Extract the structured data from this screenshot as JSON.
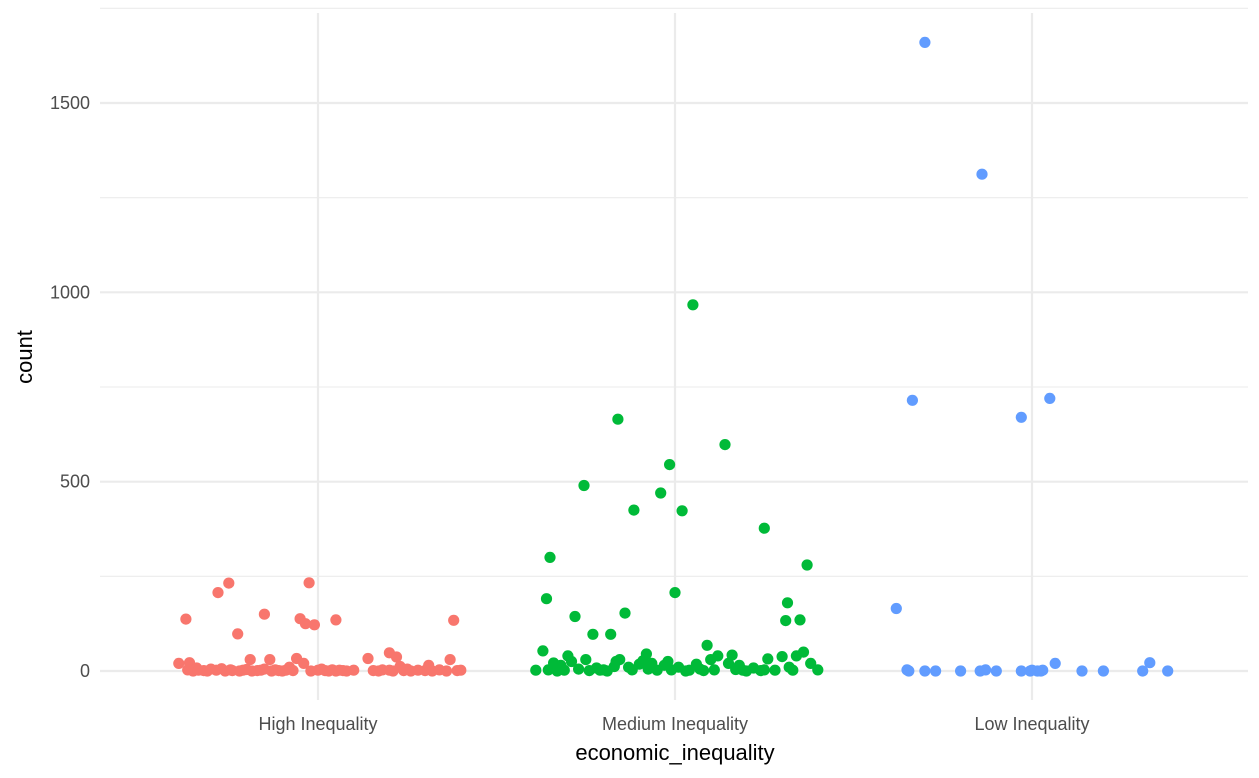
{
  "chart_data": {
    "type": "scatter",
    "title": "",
    "xlabel": "economic_inequality",
    "ylabel": "count",
    "ylim": [
      -70,
      1730
    ],
    "yticks": [
      0,
      500,
      1000,
      1500
    ],
    "grid": true,
    "legend": "none",
    "categories": [
      "High Inequality",
      "Medium Inequality",
      "Low Inequality"
    ],
    "series": [
      {
        "category": "High Inequality",
        "color": "#F8766D",
        "points": [
          {
            "x": -0.39,
            "y": 20
          },
          {
            "x": -0.37,
            "y": 137
          },
          {
            "x": -0.36,
            "y": 22
          },
          {
            "x": -0.365,
            "y": 3
          },
          {
            "x": -0.35,
            "y": 0
          },
          {
            "x": -0.34,
            "y": 8
          },
          {
            "x": -0.335,
            "y": 2
          },
          {
            "x": -0.32,
            "y": 1
          },
          {
            "x": -0.31,
            "y": 0
          },
          {
            "x": -0.3,
            "y": 5
          },
          {
            "x": -0.285,
            "y": 2
          },
          {
            "x": -0.28,
            "y": 207
          },
          {
            "x": -0.27,
            "y": 6
          },
          {
            "x": -0.26,
            "y": 0
          },
          {
            "x": -0.25,
            "y": 232
          },
          {
            "x": -0.245,
            "y": 3
          },
          {
            "x": -0.24,
            "y": 1
          },
          {
            "x": -0.225,
            "y": 98
          },
          {
            "x": -0.22,
            "y": 0
          },
          {
            "x": -0.21,
            "y": 2
          },
          {
            "x": -0.2,
            "y": 4
          },
          {
            "x": -0.19,
            "y": 30
          },
          {
            "x": -0.185,
            "y": 0
          },
          {
            "x": -0.17,
            "y": 1
          },
          {
            "x": -0.16,
            "y": 2
          },
          {
            "x": -0.15,
            "y": 5
          },
          {
            "x": -0.15,
            "y": 150
          },
          {
            "x": -0.135,
            "y": 30
          },
          {
            "x": -0.13,
            "y": 0
          },
          {
            "x": -0.12,
            "y": 3
          },
          {
            "x": -0.11,
            "y": 1
          },
          {
            "x": -0.1,
            "y": 0
          },
          {
            "x": -0.09,
            "y": 2
          },
          {
            "x": -0.08,
            "y": 10
          },
          {
            "x": -0.07,
            "y": 1
          },
          {
            "x": -0.06,
            "y": 33
          },
          {
            "x": -0.05,
            "y": 138
          },
          {
            "x": -0.04,
            "y": 20
          },
          {
            "x": -0.035,
            "y": 125
          },
          {
            "x": -0.025,
            "y": 233
          },
          {
            "x": -0.02,
            "y": 0
          },
          {
            "x": -0.01,
            "y": 122
          },
          {
            "x": 0.0,
            "y": 2
          },
          {
            "x": 0.01,
            "y": 5
          },
          {
            "x": 0.02,
            "y": 1
          },
          {
            "x": 0.03,
            "y": 0
          },
          {
            "x": 0.04,
            "y": 3
          },
          {
            "x": 0.05,
            "y": 0
          },
          {
            "x": 0.05,
            "y": 135
          },
          {
            "x": 0.06,
            "y": 2
          },
          {
            "x": 0.07,
            "y": 1
          },
          {
            "x": 0.08,
            "y": 0
          },
          {
            "x": 0.1,
            "y": 2
          },
          {
            "x": 0.14,
            "y": 33
          },
          {
            "x": 0.155,
            "y": 1
          },
          {
            "x": 0.17,
            "y": 0
          },
          {
            "x": 0.18,
            "y": 3
          },
          {
            "x": 0.2,
            "y": 2
          },
          {
            "x": 0.2,
            "y": 48
          },
          {
            "x": 0.21,
            "y": 0
          },
          {
            "x": 0.22,
            "y": 37
          },
          {
            "x": 0.23,
            "y": 12
          },
          {
            "x": 0.24,
            "y": 1
          },
          {
            "x": 0.25,
            "y": 5
          },
          {
            "x": 0.26,
            "y": 0
          },
          {
            "x": 0.28,
            "y": 2
          },
          {
            "x": 0.3,
            "y": 1
          },
          {
            "x": 0.31,
            "y": 15
          },
          {
            "x": 0.32,
            "y": 0
          },
          {
            "x": 0.34,
            "y": 3
          },
          {
            "x": 0.36,
            "y": 0
          },
          {
            "x": 0.37,
            "y": 30
          },
          {
            "x": 0.38,
            "y": 134
          },
          {
            "x": 0.39,
            "y": 1
          },
          {
            "x": 0.4,
            "y": 2
          }
        ]
      },
      {
        "category": "Medium Inequality",
        "color": "#00BA38",
        "points": [
          {
            "x": -0.39,
            "y": 2
          },
          {
            "x": -0.37,
            "y": 53
          },
          {
            "x": -0.36,
            "y": 191
          },
          {
            "x": -0.355,
            "y": 3
          },
          {
            "x": -0.35,
            "y": 300
          },
          {
            "x": -0.34,
            "y": 21
          },
          {
            "x": -0.33,
            "y": 0
          },
          {
            "x": -0.32,
            "y": 15
          },
          {
            "x": -0.31,
            "y": 2
          },
          {
            "x": -0.3,
            "y": 40
          },
          {
            "x": -0.29,
            "y": 25
          },
          {
            "x": -0.28,
            "y": 144
          },
          {
            "x": -0.27,
            "y": 5
          },
          {
            "x": -0.255,
            "y": 490
          },
          {
            "x": -0.25,
            "y": 30
          },
          {
            "x": -0.24,
            "y": 1
          },
          {
            "x": -0.23,
            "y": 97
          },
          {
            "x": -0.22,
            "y": 8
          },
          {
            "x": -0.21,
            "y": 2
          },
          {
            "x": -0.2,
            "y": 3
          },
          {
            "x": -0.19,
            "y": 0
          },
          {
            "x": -0.18,
            "y": 97
          },
          {
            "x": -0.17,
            "y": 12
          },
          {
            "x": -0.165,
            "y": 25
          },
          {
            "x": -0.16,
            "y": 665
          },
          {
            "x": -0.155,
            "y": 30
          },
          {
            "x": -0.14,
            "y": 153
          },
          {
            "x": -0.13,
            "y": 10
          },
          {
            "x": -0.12,
            "y": 3
          },
          {
            "x": -0.115,
            "y": 425
          },
          {
            "x": -0.1,
            "y": 18
          },
          {
            "x": -0.09,
            "y": 27
          },
          {
            "x": -0.08,
            "y": 45
          },
          {
            "x": -0.075,
            "y": 5
          },
          {
            "x": -0.065,
            "y": 20
          },
          {
            "x": -0.05,
            "y": 2
          },
          {
            "x": -0.04,
            "y": 470
          },
          {
            "x": -0.03,
            "y": 15
          },
          {
            "x": -0.02,
            "y": 25
          },
          {
            "x": -0.015,
            "y": 545
          },
          {
            "x": -0.01,
            "y": 3
          },
          {
            "x": 0.0,
            "y": 207
          },
          {
            "x": 0.01,
            "y": 10
          },
          {
            "x": 0.02,
            "y": 423
          },
          {
            "x": 0.03,
            "y": 0
          },
          {
            "x": 0.04,
            "y": 2
          },
          {
            "x": 0.05,
            "y": 967
          },
          {
            "x": 0.06,
            "y": 18
          },
          {
            "x": 0.07,
            "y": 5
          },
          {
            "x": 0.08,
            "y": 1
          },
          {
            "x": 0.09,
            "y": 68
          },
          {
            "x": 0.1,
            "y": 30
          },
          {
            "x": 0.11,
            "y": 3
          },
          {
            "x": 0.12,
            "y": 40
          },
          {
            "x": 0.14,
            "y": 598
          },
          {
            "x": 0.15,
            "y": 20
          },
          {
            "x": 0.16,
            "y": 42
          },
          {
            "x": 0.17,
            "y": 4
          },
          {
            "x": 0.18,
            "y": 15
          },
          {
            "x": 0.19,
            "y": 2
          },
          {
            "x": 0.2,
            "y": 0
          },
          {
            "x": 0.22,
            "y": 8
          },
          {
            "x": 0.24,
            "y": 1
          },
          {
            "x": 0.25,
            "y": 3
          },
          {
            "x": 0.25,
            "y": 377
          },
          {
            "x": 0.26,
            "y": 32
          },
          {
            "x": 0.28,
            "y": 2
          },
          {
            "x": 0.3,
            "y": 38
          },
          {
            "x": 0.31,
            "y": 133
          },
          {
            "x": 0.315,
            "y": 180
          },
          {
            "x": 0.32,
            "y": 10
          },
          {
            "x": 0.33,
            "y": 2
          },
          {
            "x": 0.34,
            "y": 40
          },
          {
            "x": 0.35,
            "y": 135
          },
          {
            "x": 0.36,
            "y": 50
          },
          {
            "x": 0.37,
            "y": 280
          },
          {
            "x": 0.38,
            "y": 20
          },
          {
            "x": 0.4,
            "y": 3
          }
        ]
      },
      {
        "category": "Low Inequality",
        "color": "#619CFF",
        "points": [
          {
            "x": -0.38,
            "y": 165
          },
          {
            "x": -0.35,
            "y": 3
          },
          {
            "x": -0.345,
            "y": 0
          },
          {
            "x": -0.335,
            "y": 715
          },
          {
            "x": -0.3,
            "y": 0
          },
          {
            "x": -0.3,
            "y": 1660
          },
          {
            "x": -0.27,
            "y": 0
          },
          {
            "x": -0.2,
            "y": 0
          },
          {
            "x": -0.145,
            "y": 0
          },
          {
            "x": -0.14,
            "y": 1312
          },
          {
            "x": -0.13,
            "y": 3
          },
          {
            "x": -0.1,
            "y": 0
          },
          {
            "x": -0.03,
            "y": 670
          },
          {
            "x": -0.03,
            "y": 0
          },
          {
            "x": -0.005,
            "y": 0
          },
          {
            "x": 0.0,
            "y": 2
          },
          {
            "x": 0.015,
            "y": 0
          },
          {
            "x": 0.025,
            "y": 0
          },
          {
            "x": 0.03,
            "y": 2
          },
          {
            "x": 0.05,
            "y": 720
          },
          {
            "x": 0.065,
            "y": 20
          },
          {
            "x": 0.14,
            "y": 0
          },
          {
            "x": 0.2,
            "y": 0
          },
          {
            "x": 0.31,
            "y": 0
          },
          {
            "x": 0.33,
            "y": 22
          },
          {
            "x": 0.38,
            "y": 0
          }
        ]
      }
    ]
  }
}
